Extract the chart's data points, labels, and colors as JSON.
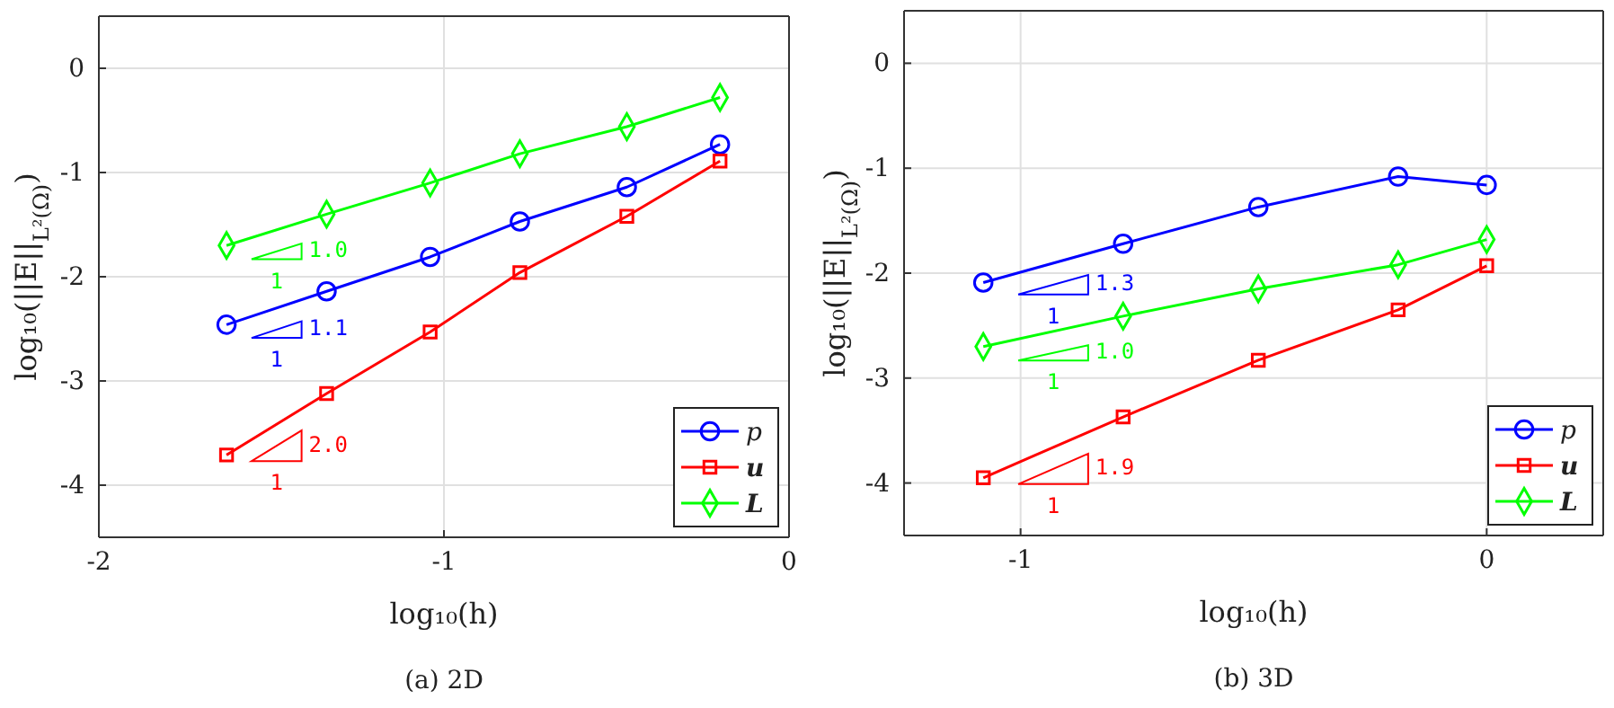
{
  "chart_data": [
    {
      "type": "line",
      "title": "(a) 2D",
      "xlabel": "log₁₀(h)",
      "ylabel": "log₁₀(||E||$_{L²(Ω)}$)",
      "xlim": [
        -2,
        0
      ],
      "xticks": [
        -2,
        -1,
        0
      ],
      "ylim": [
        -4.5,
        0.5
      ],
      "yticks": [
        -4,
        -3,
        -2,
        -1,
        0
      ],
      "grid": true,
      "legend": "bottom right",
      "line_style": "solid",
      "x": [
        -1.63,
        -1.34,
        -1.04,
        -0.78,
        -0.47,
        -0.2
      ],
      "series": [
        {
          "name": "p",
          "color": "#0000ff",
          "marker": "circle",
          "values": [
            -2.46,
            -2.14,
            -1.81,
            -1.47,
            -1.14,
            -0.73
          ]
        },
        {
          "name": "u",
          "color": "#ff0000",
          "marker": "square",
          "values": [
            -3.71,
            -3.12,
            -2.53,
            -1.96,
            -1.42,
            -0.89
          ]
        },
        {
          "name": "L",
          "color": "#00ff00",
          "marker": "diamond",
          "values": [
            -1.7,
            -1.4,
            -1.1,
            -0.82,
            -0.56,
            -0.28
          ]
        }
      ],
      "annotations": [
        "1.0",
        "1",
        "1.1",
        "1",
        "2.0",
        "1"
      ]
    },
    {
      "type": "line",
      "title": "(b) 3D",
      "xlabel": "log₁₀(h)",
      "ylabel": "log₁₀(||E||$_{L²(Ω)}$)",
      "xlim": [
        -1.25,
        0.25
      ],
      "xticks": [
        -1,
        0
      ],
      "ylim": [
        -4.5,
        0.5
      ],
      "yticks": [
        -4,
        -3,
        -2,
        -1,
        0
      ],
      "grid": true,
      "legend": "bottom right",
      "line_style": "solid",
      "x": [
        -1.08,
        -0.78,
        -0.49,
        -0.19,
        0
      ],
      "series": [
        {
          "name": "p",
          "color": "#0000ff",
          "marker": "circle",
          "values": [
            -2.09,
            -1.72,
            -1.37,
            -1.08,
            -1.16
          ]
        },
        {
          "name": "u",
          "color": "#ff0000",
          "marker": "square",
          "values": [
            -3.95,
            -3.37,
            -2.83,
            -2.35,
            -1.93
          ]
        },
        {
          "name": "L",
          "color": "#00ff00",
          "marker": "diamond",
          "values": [
            -2.7,
            -2.41,
            -2.15,
            -1.92,
            -1.68
          ]
        }
      ],
      "annotations": [
        "1.3",
        "1",
        "1.0",
        "1",
        "1.9",
        "1"
      ]
    }
  ]
}
